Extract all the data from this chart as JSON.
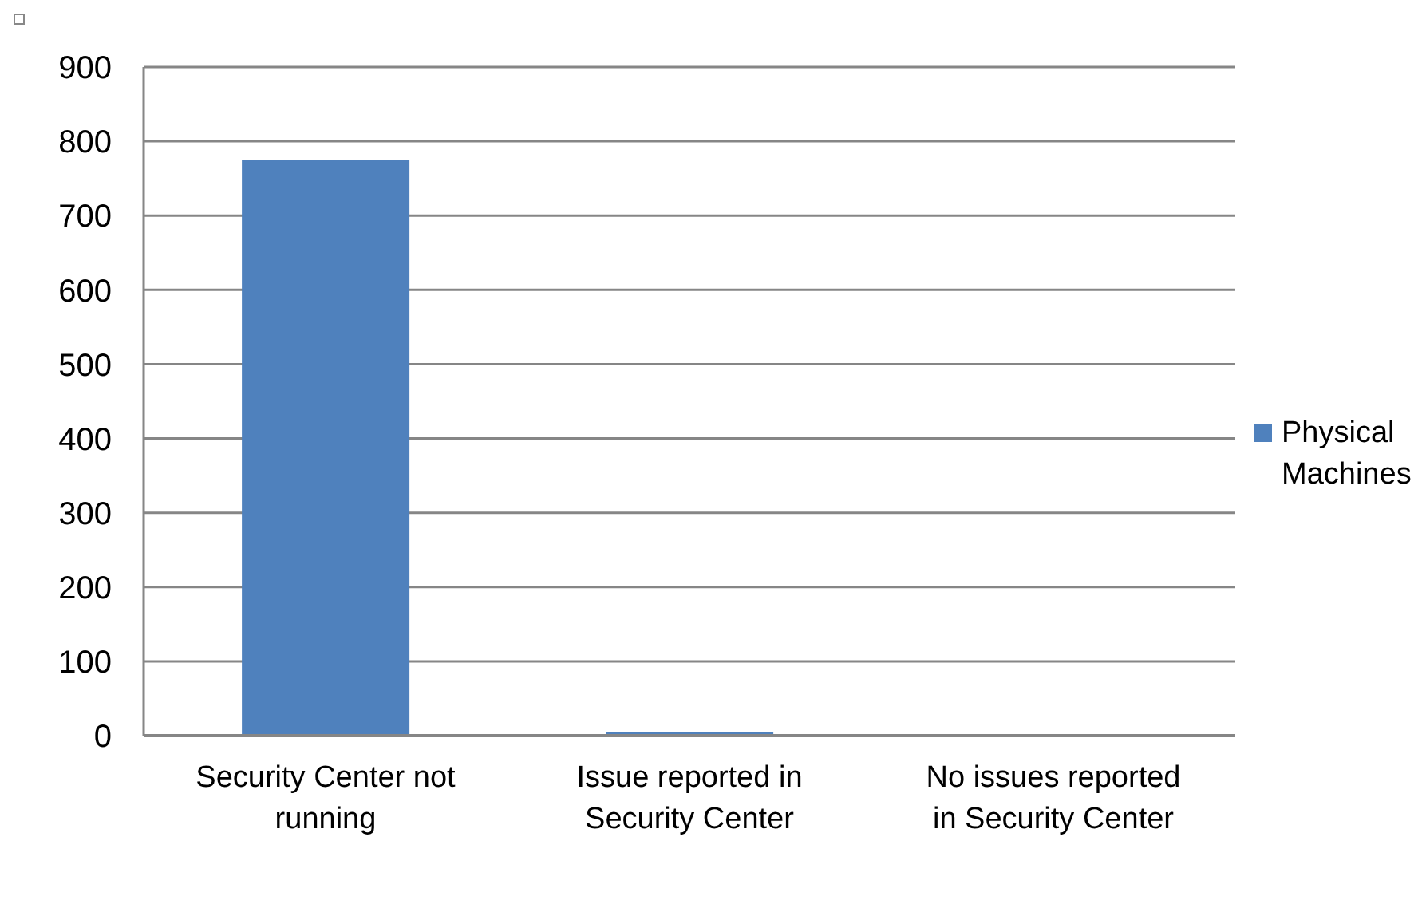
{
  "chart_data": {
    "type": "bar",
    "categories": [
      "Security Center not running",
      "Issue reported in Security Center",
      "No issues reported in Security Center"
    ],
    "series": [
      {
        "name": "Physical Machines",
        "color": "#4f81bd",
        "values": [
          775,
          5,
          0
        ]
      }
    ],
    "ylim": [
      0,
      900
    ],
    "yticks": [
      0,
      100,
      200,
      300,
      400,
      500,
      600,
      700,
      800,
      900
    ],
    "grid": "y",
    "legend": "right"
  }
}
